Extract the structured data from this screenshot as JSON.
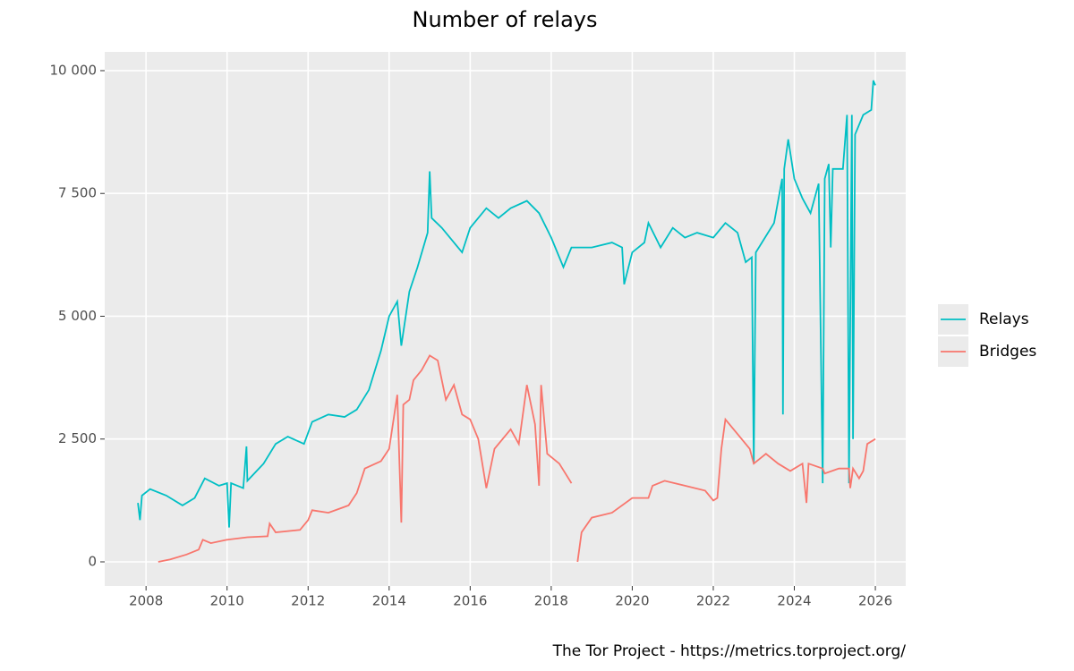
{
  "chart_data": {
    "type": "line",
    "title": "Number of relays",
    "caption": "The Tor Project - https://metrics.torproject.org/",
    "xlim": [
      2006.98,
      2026.75
    ],
    "xticks": [
      2008,
      2010,
      2012,
      2014,
      2016,
      2018,
      2020,
      2022,
      2024,
      2026
    ],
    "ylim": [
      -492,
      10382
    ],
    "yticks": [
      0,
      {
        "value": 2500,
        "label": "2 500"
      },
      {
        "value": 5000,
        "label": "5 000"
      },
      {
        "value": 7500,
        "label": "7 500"
      },
      {
        "value": 10000,
        "label": "10 000"
      }
    ],
    "grid": true,
    "legend": "right",
    "series": [
      {
        "name": "Relays",
        "color": "#00BFC4",
        "x": [
          2007.8,
          2007.85,
          2007.9,
          2008.1,
          2008.5,
          2008.9,
          2009.2,
          2009.45,
          2009.8,
          2010.0,
          2010.05,
          2010.1,
          2010.4,
          2010.48,
          2010.5,
          2010.9,
          2011.2,
          2011.5,
          2011.9,
          2012.1,
          2012.5,
          2012.9,
          2013.2,
          2013.5,
          2013.8,
          2014.0,
          2014.2,
          2014.3,
          2014.5,
          2014.7,
          2014.95,
          2015.0,
          2015.05,
          2015.3,
          2015.6,
          2015.8,
          2016.0,
          2016.4,
          2016.7,
          2017.0,
          2017.4,
          2017.7,
          2018.0,
          2018.3,
          2018.5,
          2019.0,
          2019.5,
          2019.75,
          2019.8,
          2020.0,
          2020.3,
          2020.4,
          2020.7,
          2021.0,
          2021.3,
          2021.6,
          2022.0,
          2022.3,
          2022.6,
          2022.8,
          2022.95,
          2023.0,
          2023.05,
          2023.5,
          2023.7,
          2023.72,
          2023.75,
          2023.85,
          2024.0,
          2024.2,
          2024.4,
          2024.6,
          2024.7,
          2024.75,
          2024.85,
          2024.9,
          2024.95,
          2025.2,
          2025.3,
          2025.35,
          2025.42,
          2025.45,
          2025.5,
          2025.7,
          2025.9,
          2025.95,
          2026.0
        ],
        "values": [
          1200,
          850,
          1350,
          1480,
          1350,
          1150,
          1300,
          1700,
          1550,
          1600,
          700,
          1600,
          1500,
          2350,
          1650,
          2000,
          2400,
          2550,
          2400,
          2850,
          3000,
          2950,
          3100,
          3500,
          4300,
          5000,
          5300,
          4400,
          5500,
          6000,
          6700,
          7950,
          7000,
          6800,
          6500,
          6300,
          6800,
          7200,
          7000,
          7200,
          7350,
          7100,
          6600,
          6000,
          6400,
          6400,
          6500,
          6400,
          5650,
          6300,
          6500,
          6900,
          6400,
          6800,
          6600,
          6700,
          6600,
          6900,
          6700,
          6100,
          6200,
          2000,
          6300,
          6900,
          7800,
          3000,
          8000,
          8600,
          7800,
          7400,
          7100,
          7700,
          1600,
          7800,
          8100,
          6400,
          8000,
          8000,
          9100,
          1600,
          9100,
          2500,
          8700,
          9100,
          9200,
          9800,
          9700
        ]
      },
      {
        "name": "Bridges",
        "color": "#F8766D",
        "x": [
          2008.3,
          2008.6,
          2009.0,
          2009.3,
          2009.4,
          2009.6,
          2010.0,
          2010.5,
          2011.0,
          2011.05,
          2011.2,
          2011.8,
          2012.0,
          2012.1,
          2012.5,
          2013.0,
          2013.2,
          2013.4,
          2013.8,
          2014.0,
          2014.2,
          2014.3,
          2014.35,
          2014.5,
          2014.6,
          2014.8,
          2015.0,
          2015.2,
          2015.4,
          2015.6,
          2015.8,
          2016.0,
          2016.2,
          2016.4,
          2016.6,
          2017.0,
          2017.2,
          2017.4,
          2017.6,
          2017.7,
          2017.75,
          2017.9,
          2018.2,
          2018.5,
          2018.58,
          2018.65,
          2018.75,
          2019.0,
          2019.5,
          2020.0,
          2020.4,
          2020.5,
          2020.8,
          2021.3,
          2021.8,
          2022.0,
          2022.1,
          2022.2,
          2022.3,
          2022.6,
          2022.9,
          2023.0,
          2023.3,
          2023.6,
          2023.9,
          2024.2,
          2024.3,
          2024.35,
          2024.7,
          2024.75,
          2025.1,
          2025.35,
          2025.38,
          2025.45,
          2025.6,
          2025.7,
          2025.8,
          2026.0
        ],
        "values": [
          0,
          50,
          150,
          250,
          450,
          380,
          450,
          500,
          520,
          780,
          600,
          650,
          850,
          1050,
          1000,
          1150,
          1400,
          1900,
          2050,
          2300,
          3400,
          800,
          3200,
          3300,
          3700,
          3900,
          4200,
          4100,
          3300,
          3600,
          3000,
          2900,
          2500,
          1500,
          2300,
          2700,
          2400,
          3600,
          2800,
          1550,
          3600,
          2200,
          2000,
          1600,
          null,
          0,
          600,
          900,
          1000,
          1300,
          1300,
          1550,
          1650,
          1550,
          1450,
          1250,
          1300,
          2300,
          2900,
          2600,
          2300,
          2000,
          2200,
          2000,
          1850,
          2000,
          1200,
          2000,
          1900,
          1800,
          1900,
          1900,
          1500,
          1900,
          1700,
          1850,
          2400,
          2500
        ]
      }
    ]
  }
}
